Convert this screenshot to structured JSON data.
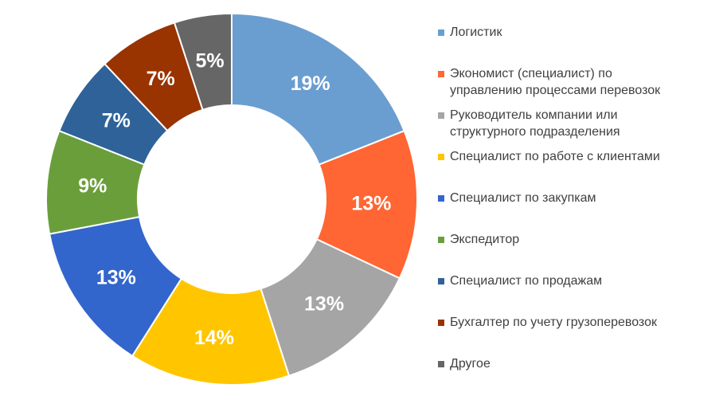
{
  "chart_data": {
    "type": "pie",
    "variant": "donut",
    "title": "",
    "legend_position": "right",
    "unit": "%",
    "slices": [
      {
        "label": "Логистик",
        "value": 19,
        "display": "19%",
        "color": "#6a9ed1"
      },
      {
        "label": "Экономист (специалист) по управлению процессами перевозок",
        "value": 13,
        "display": "13%",
        "color": "#ff6633"
      },
      {
        "label": "Руководитель компании или структурного подразделения",
        "value": 13,
        "display": "13%",
        "color": "#a5a5a5"
      },
      {
        "label": "Специалист по работе с клиентами",
        "value": 14,
        "display": "14%",
        "color": "#ffc600"
      },
      {
        "label": "Специалист по закупкам",
        "value": 13,
        "display": "13%",
        "color": "#3366cc"
      },
      {
        "label": "Экспедитор",
        "value": 9,
        "display": "9%",
        "color": "#6a9e3a"
      },
      {
        "label": "Специалист по продажам",
        "value": 7,
        "display": "7%",
        "color": "#2e6299"
      },
      {
        "label": "Бухгалтер по учету грузоперевозок",
        "value": 7,
        "display": "7%",
        "color": "#993300"
      },
      {
        "label": "Другое",
        "value": 5,
        "display": "5%",
        "color": "#666666"
      }
    ]
  }
}
